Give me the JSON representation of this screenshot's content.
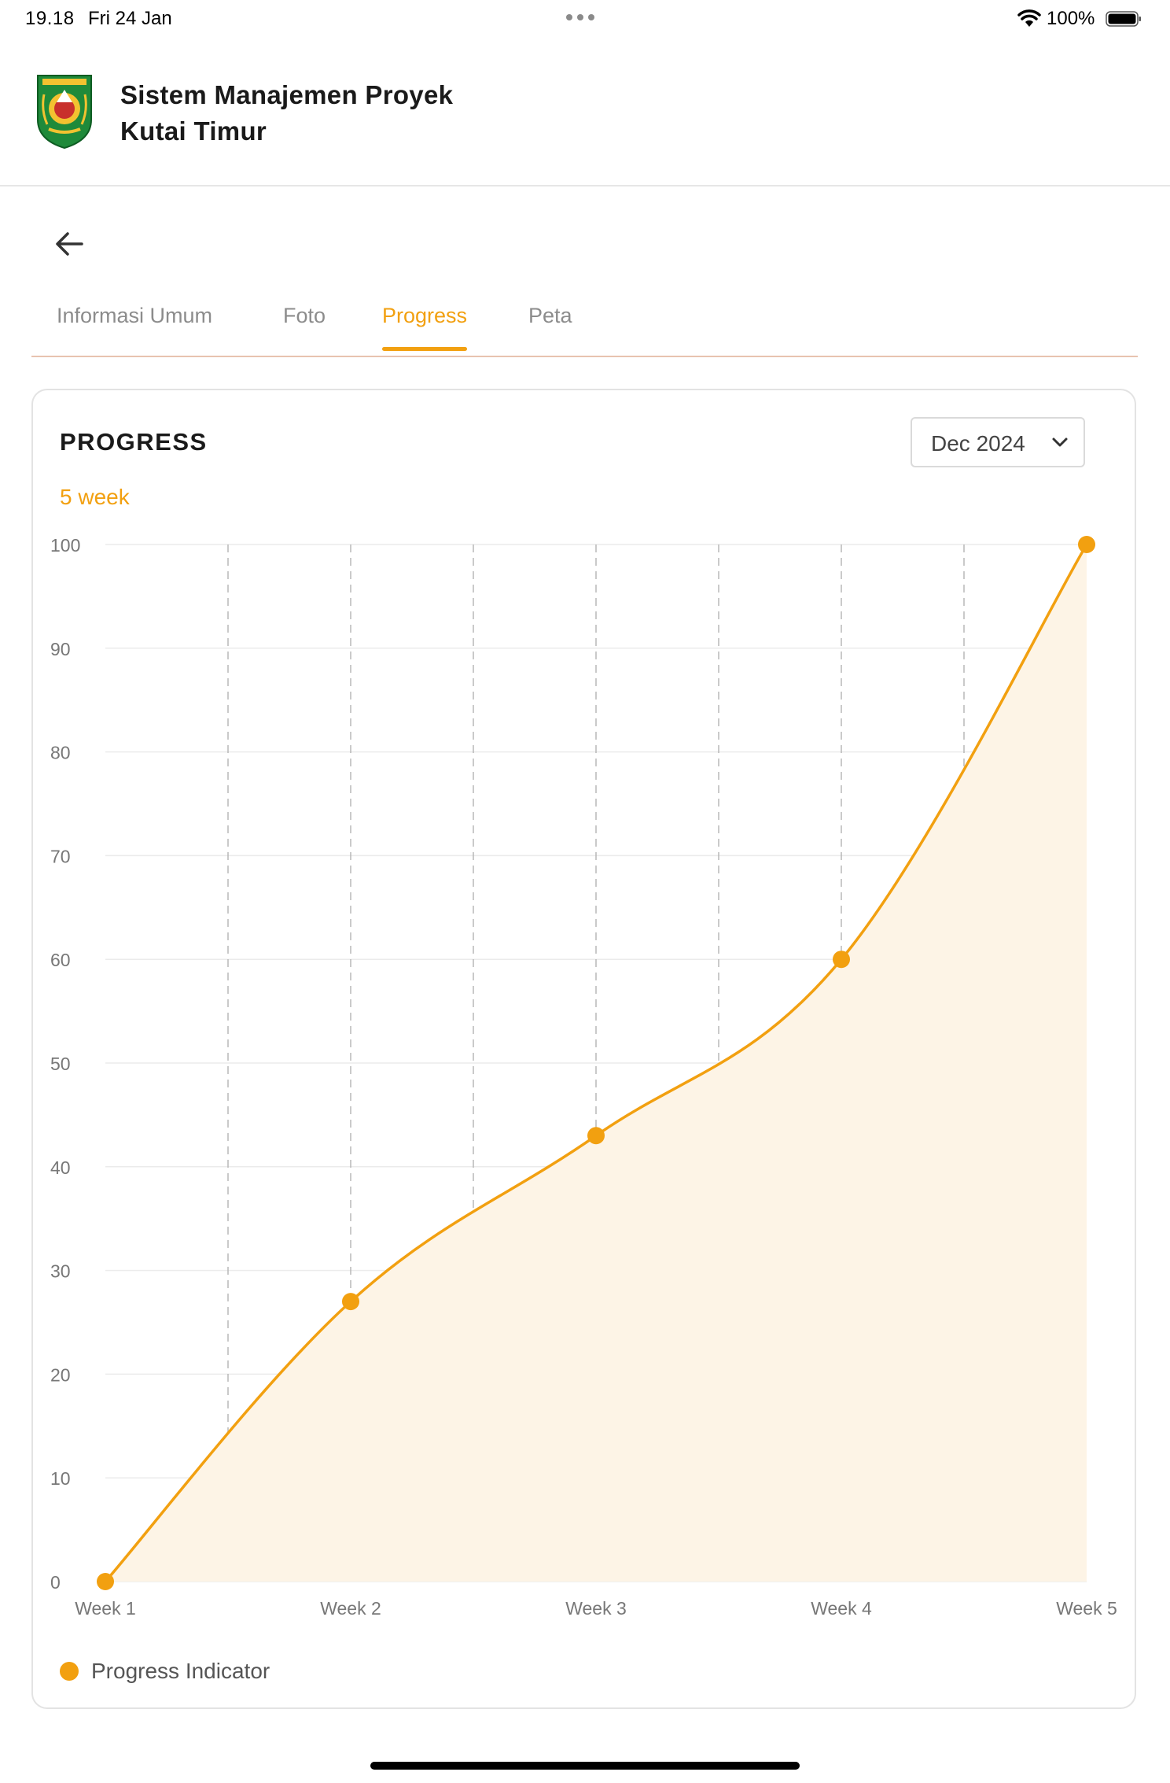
{
  "status_bar": {
    "time": "19.18",
    "date": "Fri 24 Jan",
    "battery": "100%"
  },
  "app": {
    "title_line1": "Sistem Manajemen Proyek",
    "title_line2": "Kutai Timur"
  },
  "tabs": [
    {
      "label": "Informasi Umum",
      "active": false
    },
    {
      "label": "Foto",
      "active": false
    },
    {
      "label": "Progress",
      "active": true
    },
    {
      "label": "Peta",
      "active": false
    }
  ],
  "card": {
    "title": "PROGRESS",
    "subtitle": "5 week",
    "month_select": "Dec 2024"
  },
  "chart_data": {
    "type": "area",
    "categories": [
      "Week 1",
      "Week 2",
      "Week 3",
      "Week 4",
      "Week 5"
    ],
    "series": [
      {
        "name": "Progress Indicator",
        "values": [
          0,
          27,
          43,
          60,
          100
        ]
      }
    ],
    "ylim": [
      0,
      100
    ],
    "yticks": [
      0,
      10,
      20,
      30,
      40,
      50,
      60,
      70,
      80,
      90,
      100
    ],
    "grid": true,
    "legend": "bottom-left",
    "colors": {
      "line": "#f2a010",
      "fill": "#fdf4e6",
      "grid": "#ebebeb",
      "vgrid": "#b8b8b8"
    }
  }
}
